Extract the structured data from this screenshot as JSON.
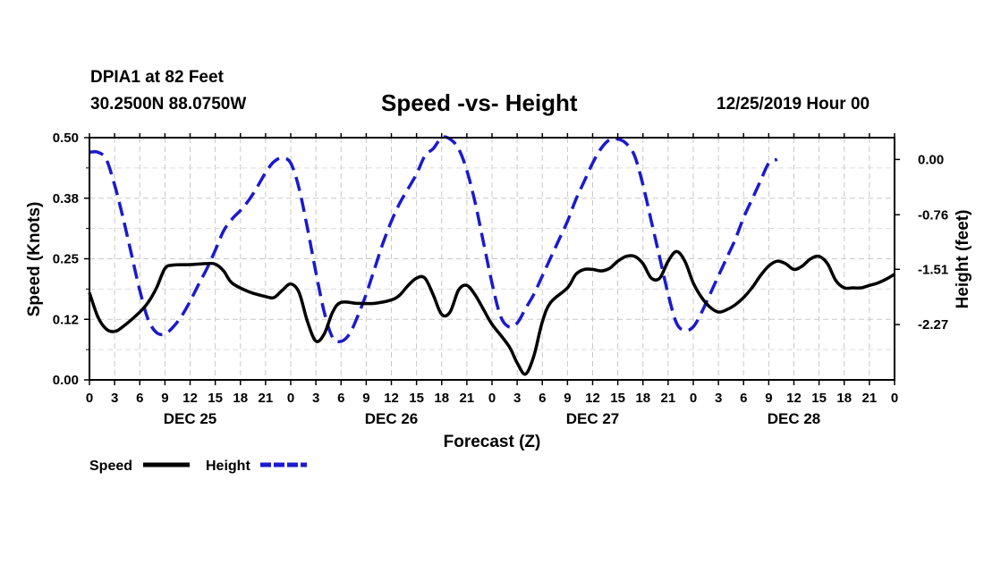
{
  "header": {
    "station": "DPIA1 at 82 Feet",
    "coords": "30.2500N 88.0750W",
    "title": "Speed -vs- Height",
    "run": "12/25/2019 Hour 00"
  },
  "colors": {
    "speed": "#000000",
    "height": "#1a1ad0",
    "grid": "#c8c8c8"
  },
  "chart_data": {
    "type": "line",
    "title": "Speed -vs- Height",
    "xlabel": "Forecast (Z)",
    "ylabel": "Speed (Knots)",
    "ylabel_right": "Height (feet)",
    "x_unit": "hours from 12/25/2019 00Z",
    "xlim": [
      0,
      96
    ],
    "ylim_left": [
      0,
      0.5
    ],
    "ylim_right": [
      -3.03,
      0.3
    ],
    "left_ticks": [
      "0.00",
      "0.12",
      "0.25",
      "0.38",
      "0.50"
    ],
    "left_tick_values": [
      0,
      0.125,
      0.25,
      0.375,
      0.5
    ],
    "right_ticks": [
      "0.00",
      "-0.76",
      "-1.51",
      "-2.27"
    ],
    "right_tick_values": [
      0,
      -0.76,
      -1.51,
      -2.27
    ],
    "x_tick_labels": [
      "0",
      "3",
      "6",
      "9",
      "12",
      "15",
      "18",
      "21",
      "0",
      "3",
      "6",
      "9",
      "12",
      "15",
      "18",
      "21",
      "0",
      "3",
      "6",
      "9",
      "12",
      "15",
      "18",
      "21",
      "0",
      "3",
      "6",
      "9",
      "12",
      "15",
      "18",
      "21",
      "0"
    ],
    "day_labels": [
      {
        "label": "DEC 25",
        "hour": 12
      },
      {
        "label": "DEC 26",
        "hour": 36
      },
      {
        "label": "DEC 27",
        "hour": 60
      },
      {
        "label": "DEC 28",
        "hour": 84
      }
    ],
    "legend": [
      {
        "name": "Speed",
        "style": "solid"
      },
      {
        "name": "Height",
        "style": "dashed"
      }
    ],
    "series": [
      {
        "name": "Speed",
        "axis": "left",
        "points": [
          [
            0,
            0.18
          ],
          [
            1,
            0.13
          ],
          [
            2,
            0.105
          ],
          [
            3,
            0.1
          ],
          [
            4,
            0.11
          ],
          [
            6,
            0.14
          ],
          [
            7,
            0.16
          ],
          [
            8,
            0.19
          ],
          [
            9,
            0.23
          ],
          [
            10,
            0.237
          ],
          [
            12,
            0.238
          ],
          [
            14,
            0.24
          ],
          [
            15,
            0.239
          ],
          [
            16,
            0.225
          ],
          [
            17,
            0.2
          ],
          [
            19,
            0.182
          ],
          [
            21,
            0.172
          ],
          [
            22,
            0.17
          ],
          [
            23,
            0.185
          ],
          [
            24,
            0.198
          ],
          [
            25,
            0.18
          ],
          [
            26,
            0.12
          ],
          [
            27,
            0.08
          ],
          [
            28,
            0.095
          ],
          [
            29,
            0.14
          ],
          [
            30,
            0.16
          ],
          [
            32,
            0.158
          ],
          [
            34,
            0.158
          ],
          [
            36,
            0.165
          ],
          [
            37,
            0.175
          ],
          [
            38,
            0.195
          ],
          [
            39,
            0.21
          ],
          [
            40,
            0.21
          ],
          [
            41,
            0.175
          ],
          [
            42,
            0.135
          ],
          [
            43,
            0.14
          ],
          [
            44,
            0.185
          ],
          [
            45,
            0.195
          ],
          [
            46,
            0.175
          ],
          [
            47,
            0.145
          ],
          [
            48,
            0.115
          ],
          [
            50,
            0.07
          ],
          [
            51,
            0.035
          ],
          [
            52,
            0.012
          ],
          [
            53,
            0.05
          ],
          [
            54,
            0.12
          ],
          [
            55,
            0.16
          ],
          [
            57,
            0.19
          ],
          [
            58,
            0.218
          ],
          [
            59,
            0.228
          ],
          [
            60,
            0.228
          ],
          [
            61,
            0.225
          ],
          [
            62,
            0.23
          ],
          [
            63,
            0.245
          ],
          [
            64,
            0.255
          ],
          [
            65,
            0.255
          ],
          [
            66,
            0.24
          ],
          [
            67,
            0.21
          ],
          [
            68,
            0.21
          ],
          [
            69,
            0.245
          ],
          [
            70,
            0.265
          ],
          [
            71,
            0.245
          ],
          [
            72,
            0.2
          ],
          [
            73,
            0.17
          ],
          [
            74,
            0.15
          ],
          [
            75,
            0.14
          ],
          [
            76,
            0.145
          ],
          [
            77,
            0.155
          ],
          [
            78,
            0.17
          ],
          [
            79,
            0.19
          ],
          [
            80,
            0.215
          ],
          [
            81,
            0.235
          ],
          [
            82,
            0.245
          ],
          [
            83,
            0.24
          ],
          [
            84,
            0.228
          ],
          [
            85,
            0.235
          ],
          [
            86,
            0.25
          ],
          [
            87,
            0.255
          ],
          [
            88,
            0.24
          ],
          [
            89,
            0.205
          ],
          [
            90,
            0.19
          ],
          [
            91,
            0.19
          ],
          [
            92,
            0.19
          ],
          [
            93,
            0.195
          ],
          [
            94,
            0.2
          ],
          [
            95,
            0.208
          ],
          [
            96,
            0.218
          ]
        ]
      },
      {
        "name": "Height",
        "axis": "right",
        "points": [
          [
            0,
            0.1
          ],
          [
            1,
            0.1
          ],
          [
            2,
            0.0
          ],
          [
            3,
            -0.35
          ],
          [
            4,
            -0.8
          ],
          [
            5,
            -1.3
          ],
          [
            6,
            -1.8
          ],
          [
            7,
            -2.2
          ],
          [
            8,
            -2.38
          ],
          [
            9,
            -2.4
          ],
          [
            10,
            -2.3
          ],
          [
            11,
            -2.15
          ],
          [
            12,
            -1.95
          ],
          [
            13,
            -1.72
          ],
          [
            14,
            -1.5
          ],
          [
            15,
            -1.25
          ],
          [
            16,
            -0.98
          ],
          [
            17,
            -0.82
          ],
          [
            18,
            -0.7
          ],
          [
            19,
            -0.56
          ],
          [
            20,
            -0.38
          ],
          [
            21,
            -0.18
          ],
          [
            22,
            -0.03
          ],
          [
            23,
            0.02
          ],
          [
            24,
            -0.05
          ],
          [
            25,
            -0.4
          ],
          [
            26,
            -0.95
          ],
          [
            27,
            -1.55
          ],
          [
            28,
            -2.1
          ],
          [
            29,
            -2.45
          ],
          [
            30,
            -2.5
          ],
          [
            31,
            -2.4
          ],
          [
            32,
            -2.15
          ],
          [
            33,
            -1.85
          ],
          [
            34,
            -1.5
          ],
          [
            35,
            -1.15
          ],
          [
            36,
            -0.85
          ],
          [
            37,
            -0.6
          ],
          [
            38,
            -0.4
          ],
          [
            39,
            -0.2
          ],
          [
            40,
            0.05
          ],
          [
            41,
            0.15
          ],
          [
            42,
            0.3
          ],
          [
            43,
            0.28
          ],
          [
            44,
            0.15
          ],
          [
            45,
            -0.15
          ],
          [
            46,
            -0.6
          ],
          [
            47,
            -1.15
          ],
          [
            48,
            -1.7
          ],
          [
            49,
            -2.15
          ],
          [
            50,
            -2.3
          ],
          [
            51,
            -2.25
          ],
          [
            52,
            -2.05
          ],
          [
            53,
            -1.85
          ],
          [
            54,
            -1.6
          ],
          [
            55,
            -1.35
          ],
          [
            56,
            -1.1
          ],
          [
            57,
            -0.85
          ],
          [
            58,
            -0.55
          ],
          [
            59,
            -0.3
          ],
          [
            60,
            -0.05
          ],
          [
            61,
            0.15
          ],
          [
            62,
            0.27
          ],
          [
            63,
            0.28
          ],
          [
            64,
            0.22
          ],
          [
            65,
            0.05
          ],
          [
            66,
            -0.35
          ],
          [
            67,
            -0.85
          ],
          [
            68,
            -1.35
          ],
          [
            69,
            -1.85
          ],
          [
            70,
            -2.25
          ],
          [
            71,
            -2.35
          ],
          [
            72,
            -2.3
          ],
          [
            73,
            -2.1
          ],
          [
            74,
            -1.85
          ],
          [
            75,
            -1.6
          ],
          [
            76,
            -1.35
          ],
          [
            77,
            -1.1
          ],
          [
            78,
            -0.8
          ],
          [
            79,
            -0.55
          ],
          [
            80,
            -0.3
          ],
          [
            81,
            -0.05
          ],
          [
            82,
            0.0
          ]
        ]
      }
    ]
  }
}
